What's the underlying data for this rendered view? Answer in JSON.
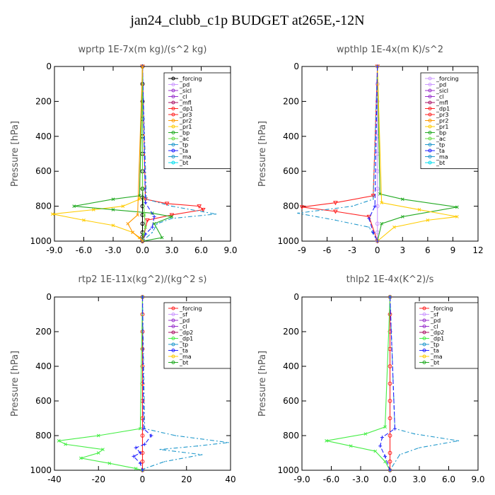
{
  "suptitle": "jan24_clubb_c1p  BUDGET at265E,-12N",
  "chart_data": [
    {
      "type": "line",
      "title": "wprtp  1E-7x(m kg)/(s^2 kg)",
      "ylabel": "Pressure [hPa]",
      "xlim": [
        -9,
        9
      ],
      "ylim": [
        1000,
        0
      ],
      "xticks": [
        "-9.0",
        "-6.0",
        "-3.0",
        "0.0",
        "3.0",
        "6.0",
        "9.0"
      ],
      "xtick_values": [
        -9,
        -6,
        -3,
        0,
        3,
        6,
        9
      ],
      "yticks": [
        "0",
        "200",
        "400",
        "600",
        "800",
        "1000"
      ],
      "ytick_values": [
        0,
        200,
        400,
        600,
        800,
        1000
      ],
      "legend": [
        "_forcing",
        "_pd",
        "_sicl",
        "_cl",
        "_mfl",
        "_dp1",
        "_pr3",
        "_pr2",
        "_pr1",
        "_bp",
        "_ac",
        "_tp",
        "_ta",
        "_ma",
        "_bt"
      ],
      "series": [
        {
          "name": "_forcing",
          "color": "#000000",
          "marker": "o",
          "dash": "",
          "x": [
            0,
            0,
            0,
            0,
            0,
            0,
            0,
            0,
            0,
            0,
            0,
            0,
            0,
            0,
            0
          ],
          "y": [
            0,
            100,
            200,
            300,
            400,
            500,
            600,
            700,
            750,
            800,
            850,
            900,
            950,
            975,
            1000
          ]
        },
        {
          "name": "_pr1",
          "color": "#ffcc00",
          "marker": "x",
          "dash": "",
          "x": [
            0,
            -0.3,
            -2,
            -5,
            -9.2,
            -6,
            -3,
            -1,
            0
          ],
          "y": [
            0,
            760,
            800,
            820,
            845,
            880,
            910,
            950,
            1000
          ]
        },
        {
          "name": "_pr3",
          "color": "#ff2222",
          "marker": "v",
          "dash": "",
          "x": [
            0,
            0.3,
            2.5,
            5.8,
            6.2,
            3,
            0.5,
            0
          ],
          "y": [
            0,
            760,
            785,
            800,
            820,
            850,
            880,
            1000
          ]
        },
        {
          "name": "_bp",
          "color": "#22aa22",
          "marker": "x",
          "dash": "",
          "x": [
            0,
            -0.3,
            -3,
            -7,
            -3,
            1,
            3,
            1.2,
            2,
            0
          ],
          "y": [
            0,
            740,
            760,
            800,
            820,
            840,
            860,
            900,
            980,
            1000
          ]
        },
        {
          "name": "_tp",
          "color": "#2299cc",
          "marker": "",
          "dash": "6,3,2,3",
          "x": [
            0,
            0.4,
            3,
            7.5,
            3,
            1.5,
            1,
            0
          ],
          "y": [
            0,
            760,
            800,
            845,
            870,
            900,
            950,
            1000
          ]
        },
        {
          "name": "_ta",
          "color": "#2222ff",
          "marker": "+",
          "dash": "6,3",
          "x": [
            0,
            0.3,
            1.2,
            1,
            0.3,
            0
          ],
          "y": [
            0,
            780,
            860,
            920,
            960,
            1000
          ]
        },
        {
          "name": "_ac",
          "color": "#66dd44",
          "marker": "x",
          "dash": "",
          "x": [
            0,
            0,
            0.2,
            0.3,
            0.1,
            0
          ],
          "y": [
            0,
            700,
            850,
            920,
            960,
            1000
          ]
        },
        {
          "name": "_pr2",
          "color": "#ff9900",
          "marker": "x",
          "dash": "",
          "x": [
            0,
            -0.5,
            -1.5,
            -1,
            -0.3,
            0
          ],
          "y": [
            0,
            850,
            900,
            950,
            980,
            1000
          ]
        }
      ]
    },
    {
      "type": "line",
      "title": "wpthlp  1E-4x(m K)/s^2",
      "ylabel": "Pressure [hPa]",
      "xlim": [
        -9,
        12
      ],
      "ylim": [
        1000,
        0
      ],
      "xticks": [
        "-9",
        "-6",
        "-3",
        "0",
        "3",
        "6",
        "9",
        "12"
      ],
      "xtick_values": [
        -9,
        -6,
        -3,
        0,
        3,
        6,
        9,
        12
      ],
      "yticks": [
        "0",
        "200",
        "400",
        "600",
        "800",
        "1000"
      ],
      "ytick_values": [
        0,
        200,
        400,
        600,
        800,
        1000
      ],
      "legend": [
        "_forcing",
        "_pd",
        "_sicl",
        "_cl",
        "_mfl",
        "_dp1",
        "_pr3",
        "_pr2",
        "_pr1",
        "_bp",
        "_ac",
        "_tp",
        "_ta",
        "_ma",
        "_bt"
      ],
      "series": [
        {
          "name": "_forcing",
          "color": "#cc99ff",
          "marker": "o",
          "dash": "",
          "x": [
            0,
            0,
            0,
            0,
            0,
            0,
            0,
            0,
            0,
            0,
            0,
            0
          ],
          "y": [
            0,
            100,
            200,
            300,
            400,
            500,
            600,
            700,
            800,
            900,
            950,
            1000
          ]
        },
        {
          "name": "_pr3",
          "color": "#ff2222",
          "marker": "v",
          "dash": "",
          "x": [
            0,
            -0.5,
            -5,
            -9,
            -5,
            -1,
            0
          ],
          "y": [
            0,
            740,
            780,
            805,
            830,
            860,
            1000
          ]
        },
        {
          "name": "_tp",
          "color": "#2299cc",
          "marker": "",
          "dash": "6,3,2,3",
          "x": [
            0,
            -0.5,
            -3,
            -9.5,
            -5,
            -1,
            0
          ],
          "y": [
            0,
            760,
            800,
            840,
            880,
            920,
            1000
          ]
        },
        {
          "name": "_bp",
          "color": "#22aa22",
          "marker": "x",
          "dash": "",
          "x": [
            0,
            0.3,
            3,
            9.5,
            3,
            0.5,
            0
          ],
          "y": [
            0,
            730,
            760,
            805,
            860,
            900,
            1000
          ]
        },
        {
          "name": "_pr1",
          "color": "#ffcc00",
          "marker": "x",
          "dash": "",
          "x": [
            0,
            0.5,
            5,
            9.5,
            6,
            2,
            0
          ],
          "y": [
            0,
            780,
            820,
            860,
            880,
            920,
            1000
          ]
        },
        {
          "name": "_ta",
          "color": "#2222ff",
          "marker": "+",
          "dash": "6,3",
          "x": [
            0,
            -0.3,
            -1,
            -0.5,
            0
          ],
          "y": [
            0,
            800,
            870,
            950,
            1000
          ]
        }
      ]
    },
    {
      "type": "line",
      "title": "rtp2  1E-11x(kg^2)/(kg^2 s)",
      "ylabel": "Pressure [hPa]",
      "xlim": [
        -40,
        40
      ],
      "ylim": [
        1000,
        0
      ],
      "xticks": [
        "-40",
        "-20",
        "0",
        "20",
        "40"
      ],
      "xtick_values": [
        -40,
        -20,
        0,
        20,
        40
      ],
      "yticks": [
        "0",
        "200",
        "400",
        "600",
        "800",
        "1000"
      ],
      "ytick_values": [
        0,
        200,
        400,
        600,
        800,
        1000
      ],
      "legend": [
        "_forcing",
        "_sf",
        "_pd",
        "_cl",
        "_dp2",
        "_dp1",
        "_tp",
        "_ta",
        "_ma",
        "_bt"
      ],
      "series": [
        {
          "name": "_forcing",
          "color": "#ff2222",
          "marker": "o",
          "dash": "",
          "x": [
            0,
            0,
            0,
            0,
            0,
            0,
            0,
            0,
            0,
            0,
            0,
            0
          ],
          "y": [
            0,
            100,
            200,
            300,
            400,
            500,
            600,
            700,
            800,
            900,
            950,
            1000
          ]
        },
        {
          "name": "_dp1",
          "color": "#44ee44",
          "marker": "x",
          "dash": "",
          "x": [
            0,
            -1,
            -20,
            -38,
            -35,
            -18,
            -20,
            -28,
            -15,
            -3,
            0
          ],
          "y": [
            0,
            760,
            800,
            830,
            850,
            880,
            900,
            930,
            960,
            990,
            1000
          ]
        },
        {
          "name": "_tp",
          "color": "#2299cc",
          "marker": "",
          "dash": "6,3,2,3",
          "x": [
            0,
            1,
            15,
            39,
            25,
            8,
            27,
            10,
            1,
            0
          ],
          "y": [
            0,
            760,
            800,
            840,
            860,
            880,
            910,
            950,
            990,
            1000
          ]
        },
        {
          "name": "_ta",
          "color": "#2222ff",
          "marker": "+",
          "dash": "6,3",
          "x": [
            0,
            0.5,
            4,
            1,
            -3,
            -1,
            -4,
            -1,
            0
          ],
          "y": [
            0,
            760,
            800,
            850,
            870,
            900,
            920,
            960,
            1000
          ]
        }
      ]
    },
    {
      "type": "line",
      "title": "thlp2  1E-4x(K^2)/s",
      "ylabel": "Pressure [hPa]",
      "xlim": [
        -9,
        9
      ],
      "ylim": [
        1000,
        0
      ],
      "xticks": [
        "-9.0",
        "-6.0",
        "-3.0",
        "0.0",
        "3.0",
        "6.0",
        "9.0"
      ],
      "xtick_values": [
        -9,
        -6,
        -3,
        0,
        3,
        6,
        9
      ],
      "yticks": [
        "0",
        "200",
        "400",
        "600",
        "800",
        "1000"
      ],
      "ytick_values": [
        0,
        200,
        400,
        600,
        800,
        1000
      ],
      "legend": [
        "_forcing",
        "_sf",
        "_pd",
        "_cl",
        "_dp2",
        "_dp1",
        "_tp",
        "_ta",
        "_ma",
        "_bt"
      ],
      "series": [
        {
          "name": "_forcing",
          "color": "#ff2222",
          "marker": "o",
          "dash": "",
          "x": [
            0,
            0,
            0,
            0,
            0,
            0,
            0,
            0,
            0,
            0,
            0,
            0
          ],
          "y": [
            0,
            100,
            200,
            300,
            400,
            500,
            600,
            700,
            800,
            900,
            950,
            1000
          ]
        },
        {
          "name": "_dp1",
          "color": "#44ee44",
          "marker": "x",
          "dash": "",
          "x": [
            0,
            -0.5,
            -2.5,
            -6.5,
            -4,
            -1.5,
            -0.5,
            0
          ],
          "y": [
            0,
            750,
            790,
            830,
            860,
            890,
            950,
            1000
          ]
        },
        {
          "name": "_tp",
          "color": "#2299cc",
          "marker": "",
          "dash": "6,3,2,3",
          "x": [
            0,
            0.5,
            2.5,
            7,
            3,
            1,
            0
          ],
          "y": [
            0,
            760,
            790,
            830,
            870,
            910,
            1000
          ]
        },
        {
          "name": "_ta",
          "color": "#2222ff",
          "marker": "+",
          "dash": "6,3",
          "x": [
            0,
            0.5,
            -0.8,
            -1,
            -0.5,
            0
          ],
          "y": [
            0,
            760,
            810,
            860,
            920,
            1000
          ]
        }
      ]
    }
  ]
}
